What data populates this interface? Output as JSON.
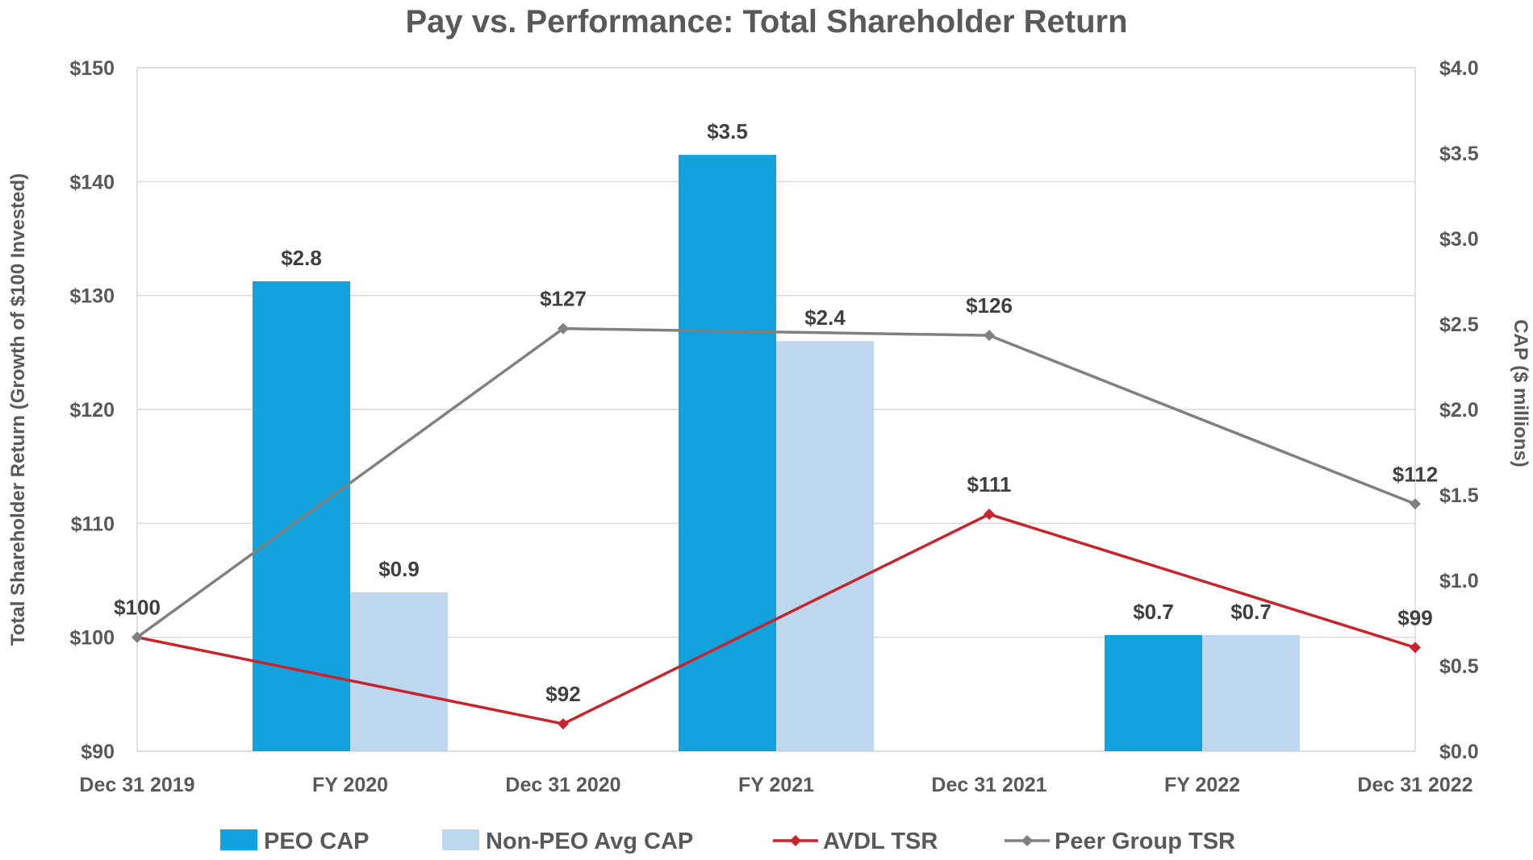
{
  "chart_data": {
    "type": "bar+line",
    "title": "Pay vs. Performance: Total Shareholder Return",
    "categories": [
      "Dec 31 2019",
      "FY 2020",
      "Dec 31 2020",
      "FY 2021",
      "Dec 31 2021",
      "FY 2022",
      "Dec 31 2022"
    ],
    "y_left": {
      "label": "Total Shareholder Return (Growth of $100 Invested)",
      "lim": [
        90,
        150
      ],
      "ticks": [
        90,
        100,
        110,
        120,
        130,
        140,
        150
      ],
      "tick_labels": [
        "$90",
        "$100",
        "$110",
        "$120",
        "$130",
        "$140",
        "$150"
      ]
    },
    "y_right": {
      "label": "CAP ($ millions)",
      "lim": [
        0,
        4
      ],
      "ticks": [
        0,
        0.5,
        1,
        1.5,
        2,
        2.5,
        3,
        3.5,
        4
      ],
      "tick_labels": [
        "$0.0",
        "$0.5",
        "$1.0",
        "$1.5",
        "$2.0",
        "$2.5",
        "$3.0",
        "$3.5",
        "$4.0"
      ]
    },
    "bar_series": [
      {
        "name": "PEO CAP",
        "color": "#12a3de",
        "axis": "right",
        "points": [
          {
            "category": "FY 2020",
            "value": 2.75,
            "label": "$2.8"
          },
          {
            "category": "FY 2021",
            "value": 3.49,
            "label": "$3.5"
          },
          {
            "category": "FY 2022",
            "value": 0.68,
            "label": "$0.7"
          }
        ]
      },
      {
        "name": "Non-PEO Avg CAP",
        "color": "#bdd7ee",
        "axis": "right",
        "points": [
          {
            "category": "FY 2020",
            "value": 0.93,
            "label": "$0.9"
          },
          {
            "category": "FY 2021",
            "value": 2.4,
            "label": "$2.4"
          },
          {
            "category": "FY 2022",
            "value": 0.68,
            "label": "$0.7"
          }
        ]
      }
    ],
    "line_series": [
      {
        "name": "AVDL TSR",
        "color": "#c8242b",
        "axis": "left",
        "points": [
          {
            "category": "Dec 31 2019",
            "value": 100,
            "label": "$100"
          },
          {
            "category": "Dec 31 2020",
            "value": 92.4,
            "label": "$92"
          },
          {
            "category": "Dec 31 2021",
            "value": 110.8,
            "label": "$111"
          },
          {
            "category": "Dec 31 2022",
            "value": 99.1,
            "label": "$99"
          }
        ]
      },
      {
        "name": "Peer Group TSR",
        "color": "#808080",
        "axis": "left",
        "points": [
          {
            "category": "Dec 31 2019",
            "value": 100,
            "label": null
          },
          {
            "category": "Dec 31 2020",
            "value": 127.1,
            "label": "$127"
          },
          {
            "category": "Dec 31 2021",
            "value": 126.5,
            "label": "$126"
          },
          {
            "category": "Dec 31 2022",
            "value": 111.7,
            "label": "$112"
          }
        ]
      }
    ],
    "legend": {
      "position": "bottom",
      "entries": [
        "PEO CAP",
        "Non-PEO Avg CAP",
        "AVDL TSR",
        "Peer Group TSR"
      ]
    },
    "grid": true
  }
}
